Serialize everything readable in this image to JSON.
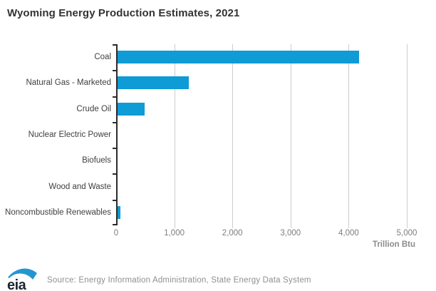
{
  "header": {
    "title": "Wyoming Energy Production Estimates, 2021"
  },
  "chart_data": {
    "type": "bar",
    "orientation": "horizontal",
    "title": "Wyoming Energy Production Estimates, 2021",
    "categories": [
      "Coal",
      "Natural Gas - Marketed",
      "Crude Oil",
      "Nuclear Electric Power",
      "Biofuels",
      "Wood and Waste",
      "Noncombustible Renewables"
    ],
    "values": [
      4180,
      1230,
      470,
      0,
      0,
      0,
      45
    ],
    "xlabel": "Trillion Btu",
    "ylabel": "",
    "xlim": [
      0,
      5000
    ],
    "xticks": [
      0,
      1000,
      2000,
      3000,
      4000,
      5000
    ],
    "xtick_labels": [
      "0",
      "1,000",
      "2,000",
      "3,000",
      "4,000",
      "5,000"
    ],
    "grid": "vertical-only",
    "legend": "none",
    "bar_color": "#0e9bd6"
  },
  "colors": {
    "bar": "#0e9bd6",
    "gridline": "#cccccc",
    "axis": "#2b2b2b",
    "title_text": "#333333",
    "category_text": "#404040",
    "tick_text": "#7d7d7d",
    "source_text": "#8f8f8f",
    "logo_text": "#1c2733",
    "logo_swoosh": "#2496cf"
  },
  "footer": {
    "logo_text": "eia",
    "source": "Source: Energy Information Administration, State Energy Data System"
  }
}
